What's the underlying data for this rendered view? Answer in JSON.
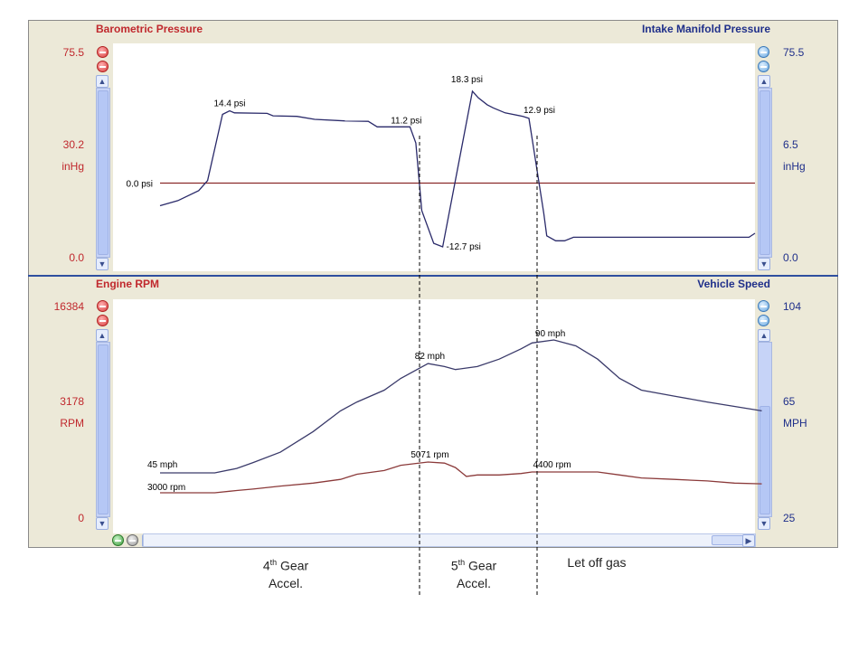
{
  "top_panel": {
    "left_title": "Barometric Pressure",
    "right_title": "Intake Manifold Pressure",
    "left_axis": {
      "max": "75.5",
      "mid": "30.2",
      "unit": "inHg",
      "min": "0.0"
    },
    "right_axis": {
      "max": "75.5",
      "mid": "6.5",
      "unit": "inHg",
      "min": "0.0"
    }
  },
  "bottom_panel": {
    "left_title": "Engine RPM",
    "right_title": "Vehicle Speed",
    "left_axis": {
      "max": "16384",
      "mid": "3178",
      "unit": "RPM",
      "min": "0"
    },
    "right_axis": {
      "max": "104",
      "mid": "65",
      "unit": "MPH",
      "min": "25"
    }
  },
  "captions": {
    "phase1": {
      "line1": "4",
      "sup": "th",
      "line1b": " Gear",
      "line2": "Accel."
    },
    "phase2": {
      "line1": "5",
      "sup": "th",
      "line1b": " Gear",
      "line2": "Accel."
    },
    "phase3": {
      "line1": "Let off gas"
    }
  },
  "colors": {
    "red": "#c0282d",
    "blue": "#1f2f8a",
    "barometric": "#8b2a2a",
    "manifold": "#2a2a6a",
    "rpm": "#8b3a3a",
    "speed": "#3a3a6a"
  },
  "icons": [
    "zoom-in-icon",
    "zoom-out-icon",
    "scroll-up-icon",
    "scroll-down-icon",
    "scroll-left-icon",
    "scroll-right-icon"
  ],
  "chart_data": [
    {
      "type": "line",
      "title": "",
      "xlabel": "",
      "ylabel_left": "inHg",
      "ylabel_right": "inHg",
      "series": [
        {
          "name": "Barometric Pressure",
          "values": [
            {
              "x": 0,
              "y": 0.0
            },
            {
              "x": 100,
              "y": 0.0
            }
          ]
        },
        {
          "name": "Intake Manifold Pressure",
          "unit": "psi",
          "values": [
            {
              "x": 0,
              "y": -4.5
            },
            {
              "x": 3,
              "y": -3.5
            },
            {
              "x": 6.5,
              "y": -1.5
            },
            {
              "x": 8,
              "y": 0.5
            },
            {
              "x": 10.5,
              "y": 13.7
            },
            {
              "x": 11.7,
              "y": 14.4
            },
            {
              "x": 12.5,
              "y": 14.0
            },
            {
              "x": 18,
              "y": 13.9
            },
            {
              "x": 19,
              "y": 13.4
            },
            {
              "x": 23,
              "y": 13.3
            },
            {
              "x": 26,
              "y": 12.7
            },
            {
              "x": 31,
              "y": 12.4
            },
            {
              "x": 35,
              "y": 12.3
            },
            {
              "x": 36.5,
              "y": 11.2
            },
            {
              "x": 42,
              "y": 11.2
            },
            {
              "x": 43,
              "y": 8
            },
            {
              "x": 44,
              "y": -5.5
            },
            {
              "x": 46,
              "y": -12
            },
            {
              "x": 47.5,
              "y": -12.7
            },
            {
              "x": 52.5,
              "y": 18.3
            },
            {
              "x": 53.5,
              "y": 17.0
            },
            {
              "x": 55,
              "y": 15.6
            },
            {
              "x": 56,
              "y": 15.0
            },
            {
              "x": 58,
              "y": 14.0
            },
            {
              "x": 61,
              "y": 13.3
            },
            {
              "x": 62,
              "y": 12.9
            },
            {
              "x": 64.5,
              "y": -6
            },
            {
              "x": 65,
              "y": -10.5
            },
            {
              "x": 66.5,
              "y": -11.5
            },
            {
              "x": 68,
              "y": -11.5
            },
            {
              "x": 69.5,
              "y": -10.8
            },
            {
              "x": 99,
              "y": -10.8
            },
            {
              "x": 100,
              "y": -10.0
            }
          ]
        }
      ],
      "ylim": [
        -13,
        19
      ],
      "annotations": [
        {
          "x": 11.7,
          "y": 14.4,
          "text": "14.4 psi"
        },
        {
          "x": 42,
          "y": 11.2,
          "text": "11.2 psi"
        },
        {
          "x": 52.5,
          "y": 18.3,
          "text": "18.3 psi"
        },
        {
          "x": 62,
          "y": 12.9,
          "text": "12.9 psi"
        },
        {
          "x": 47.5,
          "y": -12.7,
          "text": "-12.7 psi"
        },
        {
          "x": 0,
          "y": 0.0,
          "text": "0.0 psi"
        }
      ]
    },
    {
      "type": "line",
      "title": "",
      "xlabel": "",
      "ylabel_left": "RPM",
      "ylabel_right": "MPH",
      "series": [
        {
          "name": "Engine RPM",
          "unit": "rpm",
          "values": [
            {
              "x": 0,
              "y": 3000
            },
            {
              "x": 10,
              "y": 3000
            },
            {
              "x": 14,
              "y": 3150
            },
            {
              "x": 17,
              "y": 3250
            },
            {
              "x": 22,
              "y": 3450
            },
            {
              "x": 28,
              "y": 3650
            },
            {
              "x": 33,
              "y": 3900
            },
            {
              "x": 36,
              "y": 4250
            },
            {
              "x": 41,
              "y": 4500
            },
            {
              "x": 44,
              "y": 4850
            },
            {
              "x": 49,
              "y": 5071
            },
            {
              "x": 52,
              "y": 5000
            },
            {
              "x": 54,
              "y": 4700
            },
            {
              "x": 56,
              "y": 4100
            },
            {
              "x": 58,
              "y": 4200
            },
            {
              "x": 62,
              "y": 4200
            },
            {
              "x": 66,
              "y": 4300
            },
            {
              "x": 68,
              "y": 4400
            },
            {
              "x": 74,
              "y": 4400
            },
            {
              "x": 80,
              "y": 4400
            },
            {
              "x": 84,
              "y": 4200
            },
            {
              "x": 88,
              "y": 4000
            },
            {
              "x": 94,
              "y": 3900
            },
            {
              "x": 100,
              "y": 3800
            },
            {
              "x": 105,
              "y": 3650
            },
            {
              "x": 110,
              "y": 3600
            }
          ]
        },
        {
          "name": "Vehicle Speed",
          "unit": "mph",
          "values": [
            {
              "x": 0,
              "y": 45
            },
            {
              "x": 10,
              "y": 45
            },
            {
              "x": 14,
              "y": 46.5
            },
            {
              "x": 17,
              "y": 48.5
            },
            {
              "x": 22,
              "y": 52
            },
            {
              "x": 28,
              "y": 59
            },
            {
              "x": 33,
              "y": 66
            },
            {
              "x": 36,
              "y": 69
            },
            {
              "x": 41,
              "y": 73
            },
            {
              "x": 44,
              "y": 77
            },
            {
              "x": 49,
              "y": 82
            },
            {
              "x": 52,
              "y": 81
            },
            {
              "x": 54,
              "y": 80
            },
            {
              "x": 58,
              "y": 81
            },
            {
              "x": 62,
              "y": 83.5
            },
            {
              "x": 66,
              "y": 87
            },
            {
              "x": 68,
              "y": 89
            },
            {
              "x": 72,
              "y": 90
            },
            {
              "x": 76,
              "y": 88
            },
            {
              "x": 80,
              "y": 83.5
            },
            {
              "x": 84,
              "y": 77
            },
            {
              "x": 88,
              "y": 73
            },
            {
              "x": 94,
              "y": 71
            },
            {
              "x": 100,
              "y": 69
            },
            {
              "x": 105,
              "y": 67.5
            },
            {
              "x": 110,
              "y": 66
            }
          ]
        }
      ],
      "annotations": [
        {
          "x": 0,
          "y": 45,
          "text": "45 mph"
        },
        {
          "x": 0,
          "y": 3000,
          "text": "3000 rpm"
        },
        {
          "x": 49,
          "y": 82,
          "text": "82 mph"
        },
        {
          "x": 49,
          "y": 5071,
          "text": "5071 rpm"
        },
        {
          "x": 72,
          "y": 90,
          "text": "90 mph"
        },
        {
          "x": 72,
          "y": 4400,
          "text": "4400 rpm"
        }
      ]
    }
  ]
}
